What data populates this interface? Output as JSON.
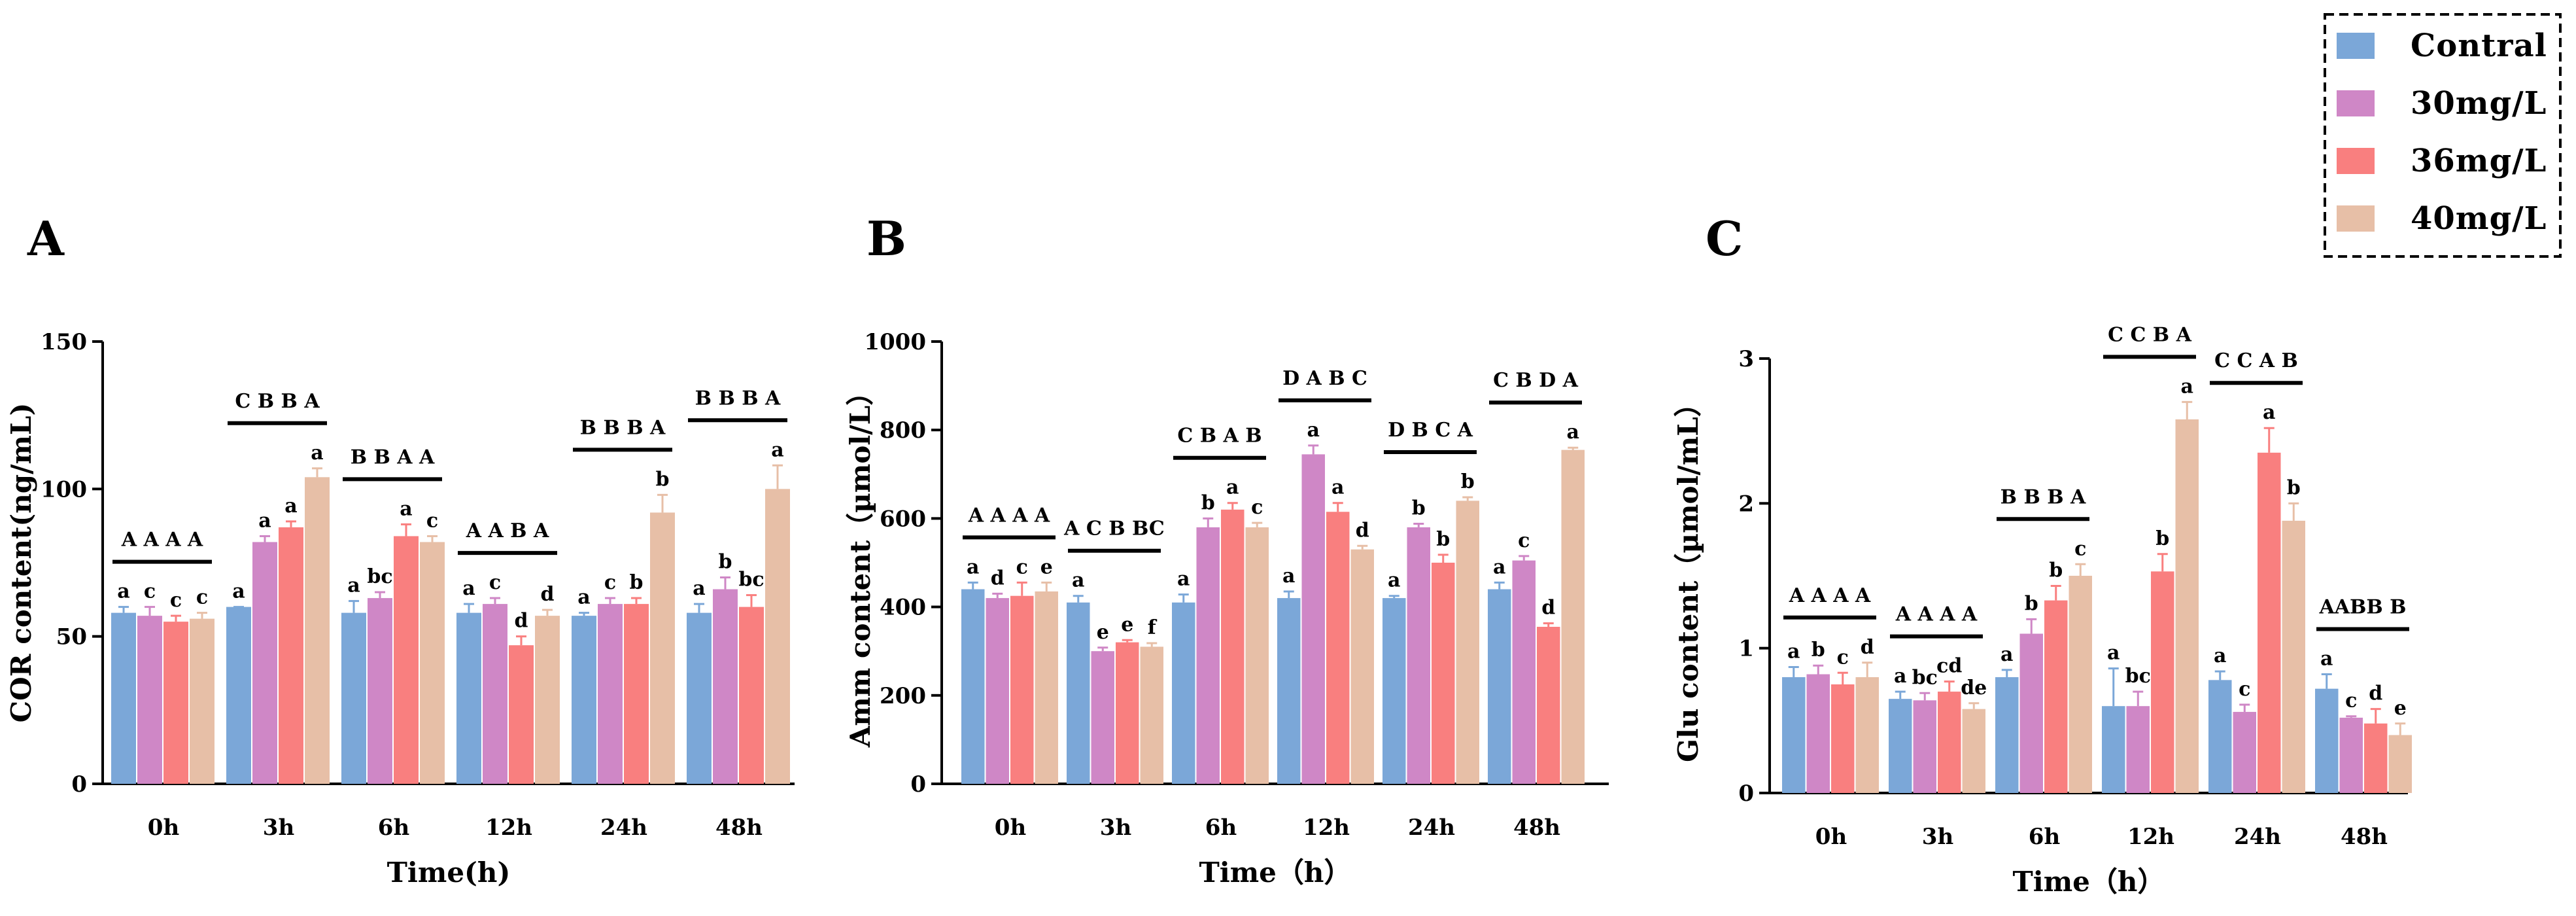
{
  "legend": {
    "items": [
      {
        "label": "Contral",
        "color": "#7ba7d8"
      },
      {
        "label": "30mg/L",
        "color": "#cf87c6"
      },
      {
        "label": "36mg/L",
        "color": "#f97f7f"
      },
      {
        "label": "40mg/L",
        "color": "#e7bfa7"
      }
    ]
  },
  "chart_data": [
    {
      "type": "bar",
      "panel": "A",
      "categories": [
        "0h",
        "3h",
        "6h",
        "12h",
        "24h",
        "48h"
      ],
      "series": [
        {
          "name": "Contral",
          "values": [
            58,
            60,
            58,
            58,
            57,
            58
          ],
          "errors": [
            2,
            0,
            4,
            3,
            1,
            3
          ],
          "labels": [
            "a",
            "a",
            "a",
            "a",
            "a",
            "a"
          ]
        },
        {
          "name": "30mg/L",
          "values": [
            57,
            82,
            63,
            61,
            61,
            66
          ],
          "errors": [
            3,
            2,
            2,
            2,
            2,
            4
          ],
          "labels": [
            "c",
            "a",
            "bc",
            "c",
            "c",
            "b"
          ]
        },
        {
          "name": "36mg/L",
          "values": [
            55,
            87,
            84,
            47,
            61,
            60
          ],
          "errors": [
            2,
            2,
            4,
            3,
            2,
            4
          ],
          "labels": [
            "c",
            "a",
            "a",
            "d",
            "b",
            "bc"
          ]
        },
        {
          "name": "40mg/L",
          "values": [
            56,
            104,
            82,
            57,
            92,
            100
          ],
          "errors": [
            2,
            3,
            2,
            2,
            6,
            8
          ],
          "labels": [
            "c",
            "a",
            "c",
            "d",
            "b",
            "a"
          ]
        }
      ],
      "group_letters": [
        "A A A A",
        "C B B A",
        "B B A A",
        "A A B A",
        "B B B A",
        "B B B A"
      ],
      "xlabel": "Time(h)",
      "ylabel": "COR content(ng/mL)",
      "ylim": [
        0,
        150
      ],
      "yticks": [
        0,
        50,
        100,
        150
      ]
    },
    {
      "type": "bar",
      "panel": "B",
      "categories": [
        "0h",
        "3h",
        "6h",
        "12h",
        "24h",
        "48h"
      ],
      "series": [
        {
          "name": "Contral",
          "values": [
            440,
            410,
            410,
            420,
            420,
            440
          ],
          "errors": [
            15,
            15,
            18,
            15,
            5,
            15
          ],
          "labels": [
            "a",
            "a",
            "a",
            "a",
            "a",
            "a"
          ]
        },
        {
          "name": "30mg/L",
          "values": [
            420,
            300,
            580,
            745,
            580,
            505
          ],
          "errors": [
            10,
            8,
            20,
            20,
            8,
            10
          ],
          "labels": [
            "d",
            "e",
            "b",
            "a",
            "b",
            "c"
          ]
        },
        {
          "name": "36mg/L",
          "values": [
            425,
            320,
            620,
            615,
            500,
            355
          ],
          "errors": [
            30,
            5,
            15,
            20,
            18,
            8
          ],
          "labels": [
            "c",
            "e",
            "a",
            "a",
            "b",
            "d"
          ]
        },
        {
          "name": "40mg/L",
          "values": [
            435,
            310,
            580,
            530,
            640,
            755
          ],
          "errors": [
            20,
            8,
            10,
            8,
            8,
            5
          ],
          "labels": [
            "e",
            "f",
            "c",
            "d",
            "b",
            "a"
          ]
        }
      ],
      "group_letters": [
        "A A A A",
        "A C B BC",
        "C B A B",
        "D A B C",
        "D B C A",
        "C B D A"
      ],
      "xlabel": "Time（h）",
      "ylabel": "Amm content（µmol/L）",
      "ylim": [
        0,
        1000
      ],
      "yticks": [
        0,
        200,
        400,
        600,
        800,
        1000
      ]
    },
    {
      "type": "bar",
      "panel": "C",
      "categories": [
        "0h",
        "3h",
        "6h",
        "12h",
        "24h",
        "48h"
      ],
      "series": [
        {
          "name": "Contral",
          "values": [
            0.8,
            0.65,
            0.8,
            0.6,
            0.78,
            0.72
          ],
          "errors": [
            0.07,
            0.05,
            0.05,
            0.26,
            0.06,
            0.1
          ],
          "labels": [
            "a",
            "a",
            "a",
            "a",
            "a",
            "a"
          ]
        },
        {
          "name": "30mg/L",
          "values": [
            0.82,
            0.64,
            1.1,
            0.6,
            0.56,
            0.52
          ],
          "errors": [
            0.06,
            0.05,
            0.1,
            0.1,
            0.05,
            0.01
          ],
          "labels": [
            "b",
            "bc",
            "b",
            "bc",
            "c",
            "c"
          ]
        },
        {
          "name": "36mg/L",
          "values": [
            0.75,
            0.7,
            1.33,
            1.53,
            2.35,
            0.48
          ],
          "errors": [
            0.08,
            0.07,
            0.1,
            0.12,
            0.17,
            0.1
          ],
          "labels": [
            "c",
            "cd",
            "b",
            "b",
            "a",
            "d"
          ]
        },
        {
          "name": "40mg/L",
          "values": [
            0.8,
            0.58,
            1.5,
            2.58,
            1.88,
            0.4
          ],
          "errors": [
            0.1,
            0.04,
            0.08,
            0.12,
            0.12,
            0.08
          ],
          "labels": [
            "d",
            "de",
            "c",
            "a",
            "b",
            "e"
          ]
        }
      ],
      "group_letters": [
        "A A A A",
        "A A A A",
        "B B B A",
        "C C B A",
        "C C A B",
        "AABB B"
      ],
      "xlabel": "Time（h）",
      "ylabel": "Glu content（µmol/mL）",
      "ylim": [
        0,
        3
      ],
      "yticks": [
        0,
        1,
        2,
        3
      ]
    }
  ]
}
